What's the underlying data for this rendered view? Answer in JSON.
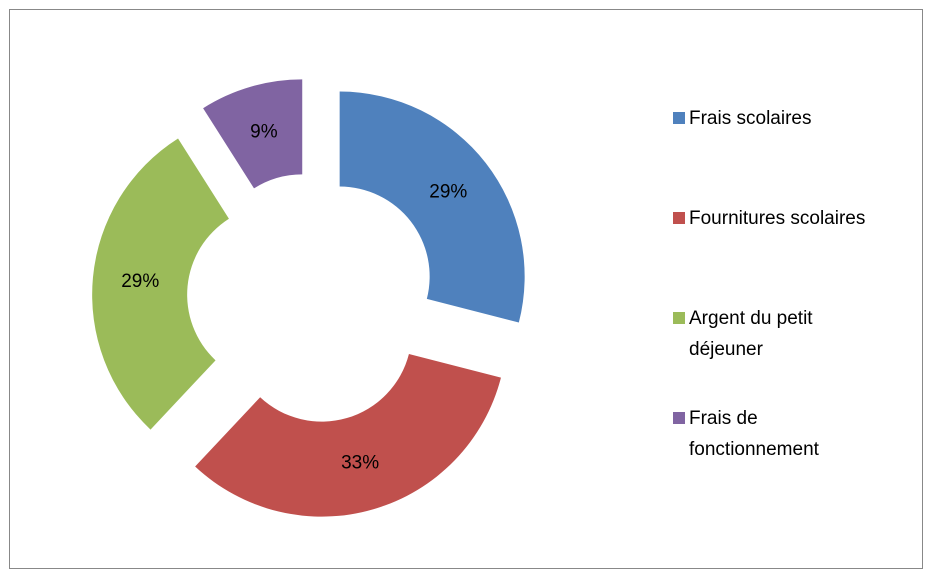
{
  "chart_data": {
    "type": "donut",
    "categories": [
      "Frais scolaires",
      "Fournitures scolaires",
      "Argent du petit déjeuner",
      "Frais de fonctionnement"
    ],
    "values": [
      29,
      33,
      29,
      9
    ],
    "value_labels": [
      "29%",
      "33%",
      "29%",
      "9%"
    ],
    "colors": [
      "#4f81bd",
      "#c0504d",
      "#9bbb59",
      "#8064a2"
    ],
    "legend": "right"
  }
}
